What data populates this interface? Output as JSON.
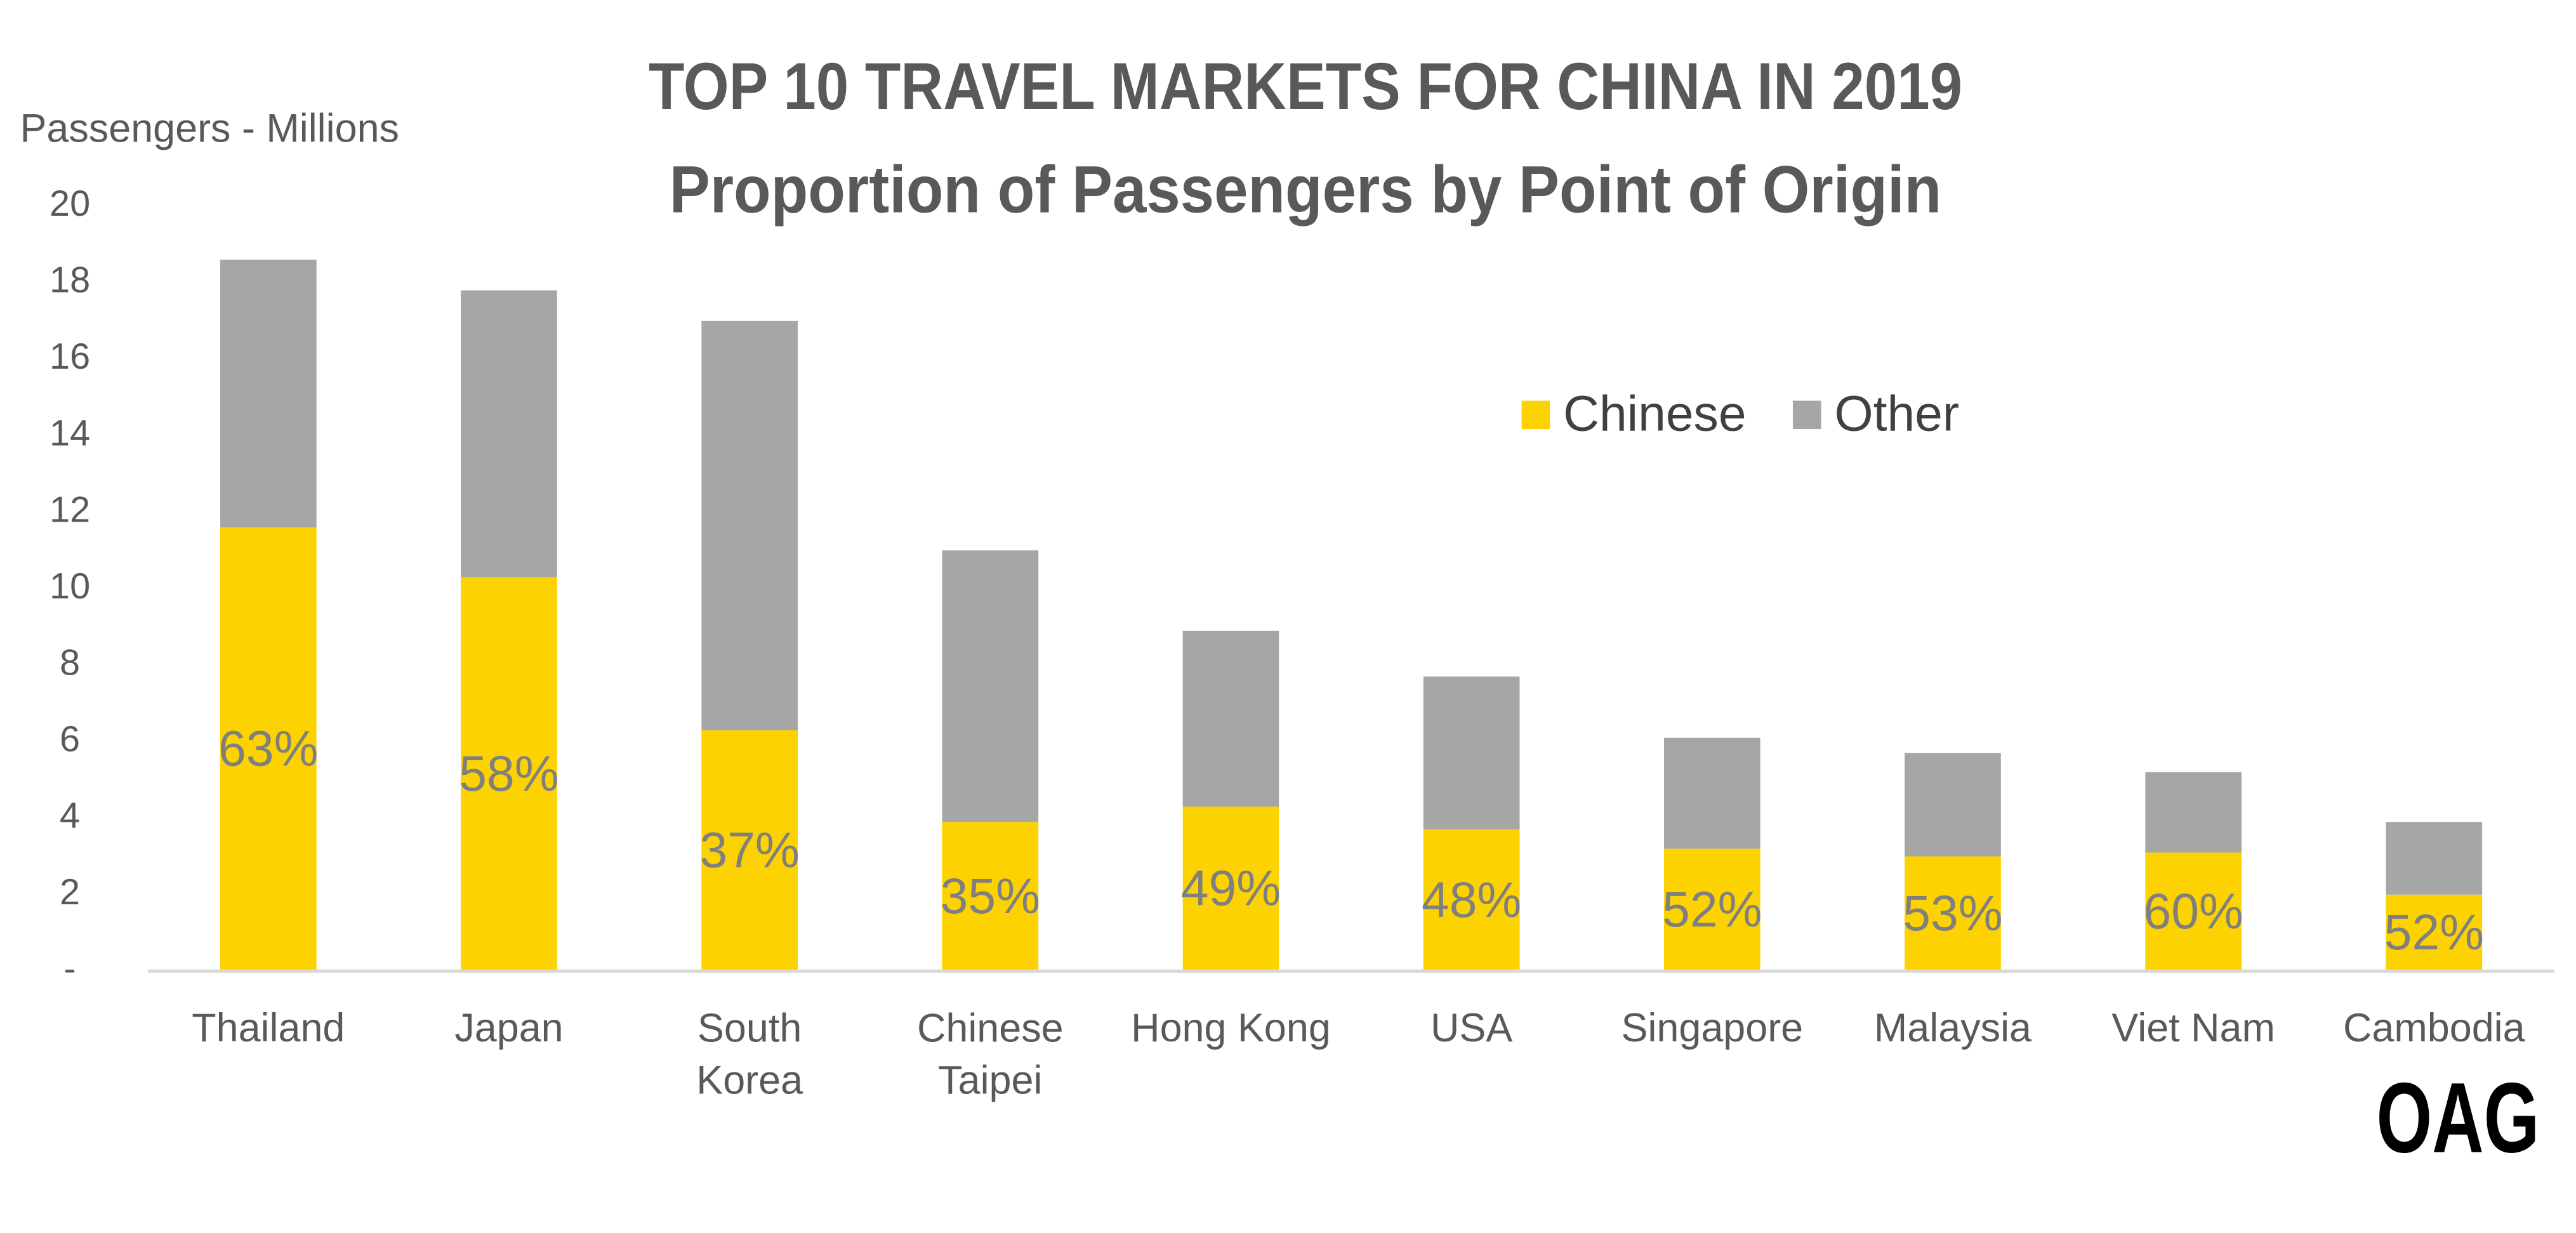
{
  "chart_data": {
    "type": "stacked-bar",
    "title": "TOP 10 TRAVEL MARKETS FOR CHINA IN 2019",
    "subtitle": "Proportion of Passengers by Point of Origin",
    "y_axis_label": "Passengers - Millions",
    "logo": "OAG",
    "categories": [
      "Thailand",
      "Japan",
      "South\nKorea",
      "Chinese\nTaipei",
      "Hong Kong",
      "USA",
      "Singapore",
      "Malaysia",
      "Viet Nam",
      "Cambodia"
    ],
    "series": [
      {
        "name": "Chinese",
        "color": "#fcd200",
        "values": [
          11.6,
          10.3,
          6.3,
          3.9,
          4.3,
          3.7,
          3.2,
          3.0,
          3.1,
          2.0
        ]
      },
      {
        "name": "Other",
        "color": "#a6a6a6",
        "values": [
          7.0,
          7.5,
          10.7,
          7.1,
          4.6,
          4.0,
          2.9,
          2.7,
          2.1,
          1.9
        ]
      }
    ],
    "share_labels": [
      "63%",
      "58%",
      "37%",
      "35%",
      "49%",
      "48%",
      "52%",
      "53%",
      "60%",
      "52%"
    ],
    "ylim": [
      0,
      20
    ],
    "yticks": [
      {
        "value": 0,
        "label": "-"
      },
      2,
      4,
      6,
      8,
      10,
      12,
      14,
      16,
      18,
      20
    ],
    "grid": false
  }
}
